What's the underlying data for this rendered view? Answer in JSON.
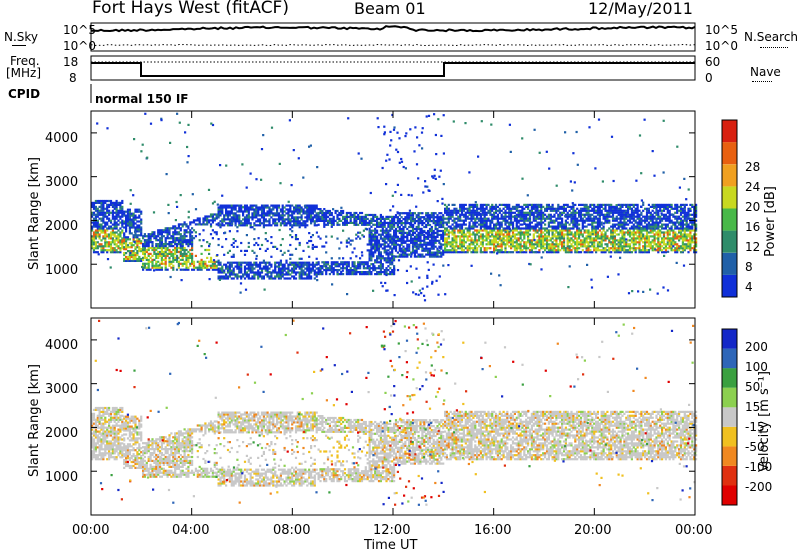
{
  "header": {
    "radar": "Fort Hays West (fitACF)",
    "beam": "Beam 01",
    "date": "12/May/2011"
  },
  "aux": {
    "nsky_label": "N.Sky",
    "nsky_top": "10^5",
    "nsky_bottom": "10^0",
    "nsearch_label": "N.Search",
    "nsearch_top": "10^5",
    "nsearch_bottom": "10^0",
    "freq_label_1": "Freq.",
    "freq_label_2": "[MHz]",
    "freq_top": "18",
    "freq_bottom": "8",
    "nave_label": "Nave",
    "nave_top": "60",
    "nave_bottom": "0",
    "cpid_label": "CPID",
    "cpid_value": "normal 150 IF"
  },
  "chart_data": [
    {
      "type": "heatmap",
      "panel": "power",
      "ylabel": "Slant Range [km]",
      "ylim": [
        0,
        4500
      ],
      "yticks": [
        "1000",
        "2000",
        "3000",
        "4000"
      ],
      "xlim": [
        "00:00",
        "24:00"
      ],
      "colorbar_label": "Power [dB]",
      "colorbar_ticks": [
        "4",
        "8",
        "12",
        "16",
        "20",
        "24",
        "28"
      ],
      "colorbar_colors": [
        "#1030d8",
        "#2060a8",
        "#2f8c6a",
        "#48b848",
        "#c8d820",
        "#f0a020",
        "#e86010",
        "#d82010"
      ]
    },
    {
      "type": "heatmap",
      "panel": "velocity",
      "ylabel": "Slant Range [km]",
      "ylim": [
        0,
        4500
      ],
      "yticks": [
        "1000",
        "2000",
        "3000",
        "4000"
      ],
      "xlim": [
        "00:00",
        "24:00"
      ],
      "xticks": [
        "00:00",
        "04:00",
        "08:00",
        "12:00",
        "16:00",
        "20:00",
        "00:00"
      ],
      "xlabel": "Time UT",
      "colorbar_label": "Velocity [m s⁻¹]",
      "colorbar_ticks": [
        "200",
        "100",
        "50",
        "15",
        "-15",
        "-50",
        "-100",
        "-200"
      ],
      "colorbar_colors": [
        "#1428c8",
        "#2e66b8",
        "#3aa040",
        "#8cd050",
        "#c8c8c8",
        "#f0c020",
        "#f08820",
        "#e03010",
        "#e00000"
      ]
    }
  ]
}
